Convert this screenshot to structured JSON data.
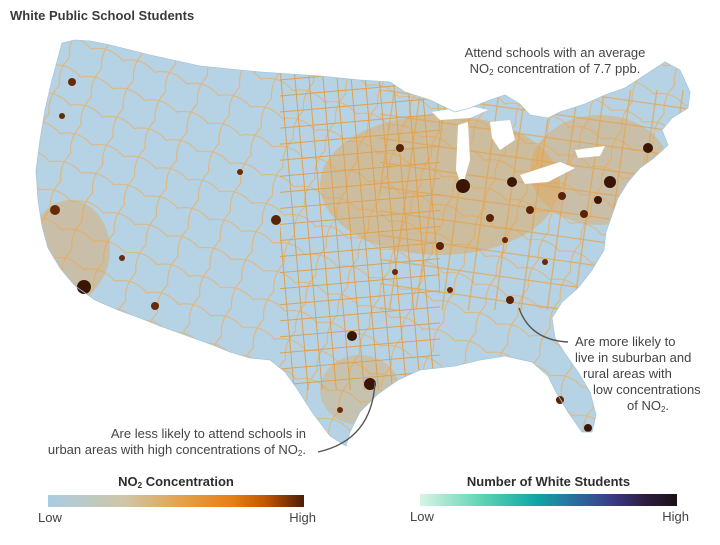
{
  "title": "White Public School Students",
  "annotations": {
    "top": {
      "line1": "Attend schools with an average",
      "line2_pre": "NO",
      "line2_sub": "2",
      "line2_post": " concentration of 7.7 ppb."
    },
    "left": {
      "line1": "Are less likely to attend schools in",
      "line2_pre": "urban areas with high concentrations of NO",
      "line2_sub": "2",
      "line2_post": "."
    },
    "right": {
      "line1": "Are more likely to",
      "line2": "live in suburban and",
      "line3": "rural areas with",
      "line4": "low concentrations",
      "line5_pre": "of NO",
      "line5_sub": "2",
      "line5_post": "."
    }
  },
  "legend_no2": {
    "title_pre": "NO",
    "title_sub": "2",
    "title_post": " Concentration",
    "low": "Low",
    "high": "High",
    "colors": [
      "#a9cde3",
      "#cfc6a6",
      "#e3a553",
      "#e77f13",
      "#c15700",
      "#4d1d08"
    ]
  },
  "legend_students": {
    "title": "Number of White Students",
    "low": "Low",
    "high": "High",
    "colors": [
      "#d8f5e6",
      "#59d2b2",
      "#10a7a6",
      "#2a6f9e",
      "#3c3a85",
      "#2e1c3f",
      "#1a1116"
    ]
  },
  "map": {
    "land_color": "#b6d3e6",
    "road_color": "#e3a54f",
    "dense_color": "#6b2a06",
    "hotspot_color": "#3b1504"
  }
}
